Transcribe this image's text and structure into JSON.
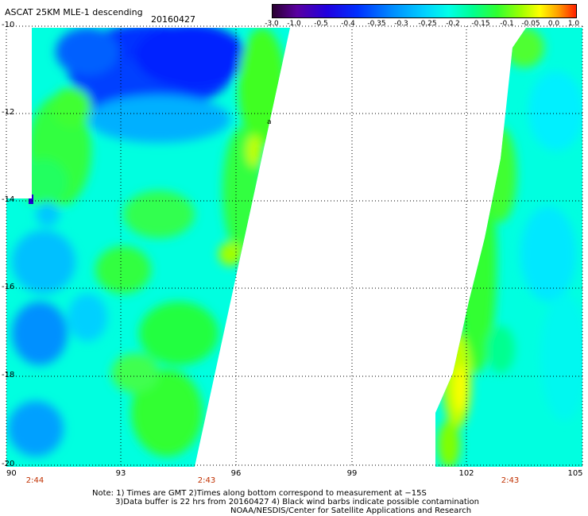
{
  "header": {
    "title": "ASCAT 25KM MLE-1 descending",
    "date": "20160427"
  },
  "colorbar": {
    "labels": [
      "-3.0",
      "-1.0",
      "-0.5",
      "-0.4",
      "-0.35",
      "-0.3",
      "-0.25",
      "-0.2",
      "-0.15",
      "-0.1",
      "-0.05",
      "0.0",
      "1.0"
    ],
    "colors": [
      "#2a0030",
      "#5a00a0",
      "#2000e0",
      "#0030ff",
      "#0090ff",
      "#00d0ff",
      "#00ffe8",
      "#00ff90",
      "#30ff30",
      "#a0ff00",
      "#ffff00",
      "#ffa000",
      "#ff4000"
    ]
  },
  "axes": {
    "x_labels": [
      "90",
      "93",
      "96",
      "99",
      "102",
      "105"
    ],
    "y_labels": [
      "-10",
      "-12",
      "-14",
      "-16",
      "-18",
      "-20"
    ]
  },
  "times": {
    "t1": "2:44",
    "t2": "2:43",
    "t3": "2:43"
  },
  "notes": {
    "line1": "Note: 1) Times are GMT 2)Times along bottom correspond to measurement at −15S",
    "line2": "3)Data buffer is 22 hrs from 20160427 4) Black wind barbs indicate possible contamination",
    "line3": "NOAA/NESDIS/Center for Satellite Applications and Research"
  }
}
